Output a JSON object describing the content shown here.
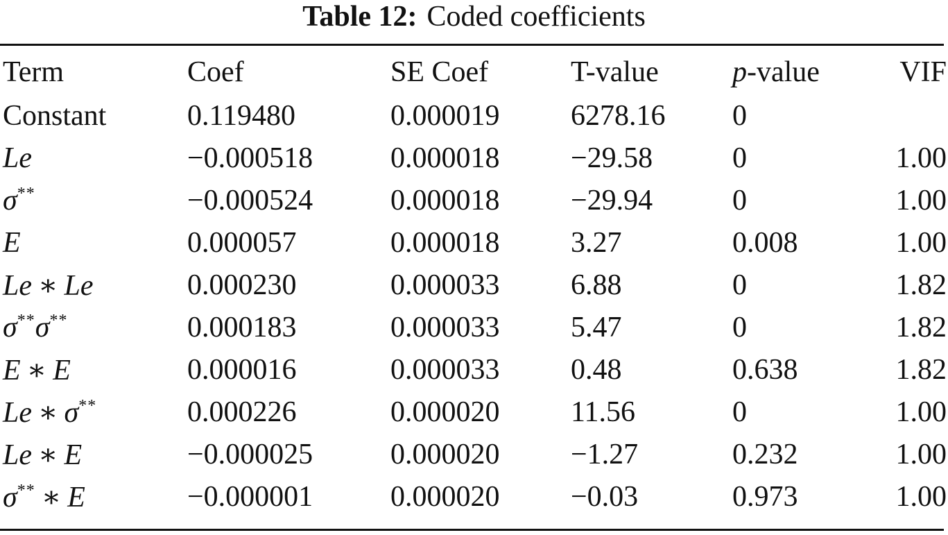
{
  "caption": {
    "label": "Table 12:",
    "title": "Coded coefficients"
  },
  "columns": {
    "term": "Term",
    "coef": "Coef",
    "se_coef": "SE Coef",
    "t_value": "T-value",
    "p_value_italic": "p",
    "p_value_rest": "-value",
    "vif": "VIF"
  },
  "rows": [
    {
      "term": "Constant",
      "coef": "0.119480",
      "se_coef": "0.000019",
      "t_value": "6278.16",
      "p_value": "0",
      "vif": ""
    },
    {
      "term": "Le",
      "coef": "−0.000518",
      "se_coef": "0.000018",
      "t_value": "−29.58",
      "p_value": "0",
      "vif": "1.00"
    },
    {
      "term": "σ**",
      "coef": "−0.000524",
      "se_coef": "0.000018",
      "t_value": "−29.94",
      "p_value": "0",
      "vif": "1.00"
    },
    {
      "term": "E",
      "coef": "0.000057",
      "se_coef": "0.000018",
      "t_value": "3.27",
      "p_value": "0.008",
      "vif": "1.00"
    },
    {
      "term": "Le ∗ Le",
      "coef": "0.000230",
      "se_coef": "0.000033",
      "t_value": "6.88",
      "p_value": "0",
      "vif": "1.82"
    },
    {
      "term": "σ**σ**",
      "coef": "0.000183",
      "se_coef": "0.000033",
      "t_value": "5.47",
      "p_value": "0",
      "vif": "1.82"
    },
    {
      "term": "E ∗ E",
      "coef": "0.000016",
      "se_coef": "0.000033",
      "t_value": "0.48",
      "p_value": "0.638",
      "vif": "1.82"
    },
    {
      "term": "Le ∗ σ**",
      "coef": "0.000226",
      "se_coef": "0.000020",
      "t_value": "11.56",
      "p_value": "0",
      "vif": "1.00"
    },
    {
      "term": "Le ∗ E",
      "coef": "−0.000025",
      "se_coef": "0.000020",
      "t_value": "−1.27",
      "p_value": "0.232",
      "vif": "1.00"
    },
    {
      "term": "σ** ∗ E",
      "coef": "−0.000001",
      "se_coef": "0.000020",
      "t_value": "−0.03",
      "p_value": "0.973",
      "vif": "1.00"
    }
  ]
}
